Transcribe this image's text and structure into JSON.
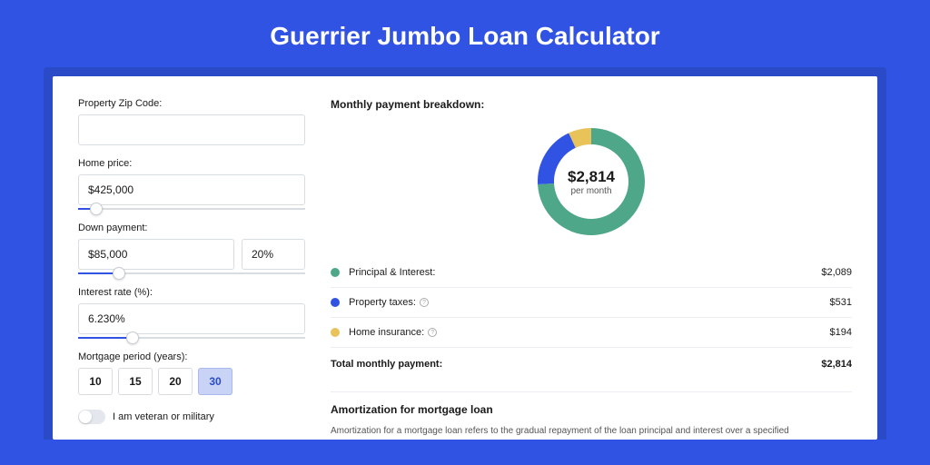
{
  "page": {
    "title": "Guerrier Jumbo Loan Calculator",
    "background_color": "#3053e3",
    "card_shadow_color": "#2a4ac7"
  },
  "form": {
    "zip": {
      "label": "Property Zip Code:",
      "value": ""
    },
    "home_price": {
      "label": "Home price:",
      "value": "$425,000",
      "slider_percent": 8
    },
    "down_payment": {
      "label": "Down payment:",
      "amount": "$85,000",
      "percent": "20%",
      "slider_percent": 18
    },
    "interest_rate": {
      "label": "Interest rate (%):",
      "value": "6.230%",
      "slider_percent": 24
    },
    "mortgage_period": {
      "label": "Mortgage period (years):",
      "options": [
        "10",
        "15",
        "20",
        "30"
      ],
      "selected": "30"
    },
    "veteran": {
      "label": "I am veteran or military",
      "checked": false
    }
  },
  "breakdown": {
    "title": "Monthly payment breakdown:",
    "donut": {
      "amount": "$2,814",
      "sub": "per month",
      "slices": [
        {
          "color": "#4ea789",
          "percent": 74.2
        },
        {
          "color": "#3053e3",
          "percent": 18.9
        },
        {
          "color": "#e8c35a",
          "percent": 6.9
        }
      ],
      "stroke_width": 18
    },
    "rows": [
      {
        "color": "#4ea789",
        "label": "Principal & Interest:",
        "value": "$2,089",
        "info": false
      },
      {
        "color": "#3053e3",
        "label": "Property taxes:",
        "value": "$531",
        "info": true
      },
      {
        "color": "#e8c35a",
        "label": "Home insurance:",
        "value": "$194",
        "info": true
      }
    ],
    "total": {
      "label": "Total monthly payment:",
      "value": "$2,814"
    }
  },
  "amortization": {
    "title": "Amortization for mortgage loan",
    "text": "Amortization for a mortgage loan refers to the gradual repayment of the loan principal and interest over a specified"
  }
}
